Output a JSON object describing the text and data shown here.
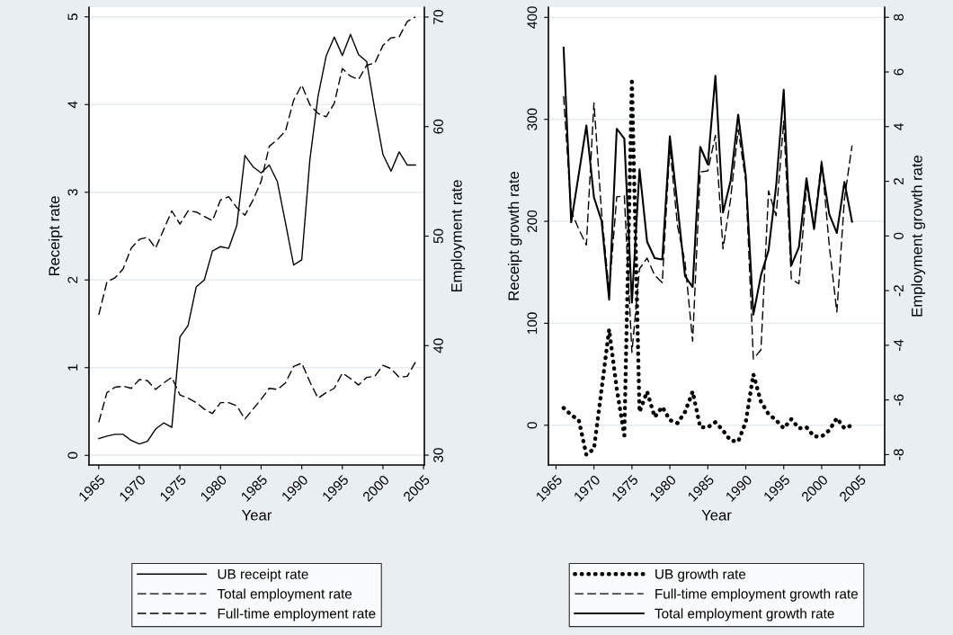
{
  "chart_data": [
    {
      "type": "line",
      "xlabel": "Year",
      "ylabel": "Receipt rate",
      "y2label": "Employment rate",
      "x": [
        1965,
        1966,
        1967,
        1968,
        1969,
        1970,
        1971,
        1972,
        1973,
        1974,
        1975,
        1976,
        1977,
        1978,
        1979,
        1980,
        1981,
        1982,
        1983,
        1984,
        1985,
        1986,
        1987,
        1988,
        1989,
        1990,
        1991,
        1992,
        1993,
        1994,
        1995,
        1996,
        1997,
        1998,
        1999,
        2000,
        2001,
        2002,
        2003,
        2004
      ],
      "xlim": [
        1963.8,
        2005.1
      ],
      "xticks": [
        1965,
        1970,
        1975,
        1980,
        1985,
        1990,
        1995,
        2000,
        2005
      ],
      "ylim": [
        -0.11,
        5.11
      ],
      "yticks": [
        0,
        1,
        2,
        3,
        4,
        5
      ],
      "y2lim": [
        29.1,
        70.9
      ],
      "y2ticks": [
        30,
        40,
        50,
        60,
        70
      ],
      "grid": "y",
      "legend": "bottom",
      "series": [
        {
          "name": "UB receipt rate",
          "color": "#000000",
          "line_style": "solid",
          "values": [
            0.19,
            0.22,
            0.24,
            0.24,
            0.17,
            0.13,
            0.16,
            0.3,
            0.37,
            0.32,
            1.35,
            1.48,
            1.92,
            2.0,
            2.33,
            2.38,
            2.36,
            2.62,
            3.42,
            3.29,
            3.22,
            3.31,
            3.12,
            2.65,
            2.17,
            2.23,
            3.37,
            4.09,
            4.55,
            4.77,
            4.56,
            4.8,
            4.57,
            4.49,
            3.94,
            3.43,
            3.24,
            3.46,
            3.31,
            3.31
          ]
        },
        {
          "name": "Total employment rate",
          "color": "#000000",
          "line_style": "dashed",
          "axis": "y2",
          "values": [
            42.8,
            45.8,
            46.2,
            47.0,
            48.9,
            49.7,
            49.9,
            48.9,
            50.6,
            52.3,
            51.1,
            52.3,
            52.2,
            51.8,
            51.4,
            53.3,
            53.6,
            52.6,
            51.9,
            53.3,
            55.0,
            58.2,
            58.8,
            59.6,
            62.4,
            63.8,
            62.0,
            61.2,
            60.9,
            62.1,
            65.3,
            64.6,
            64.3,
            65.6,
            65.8,
            67.4,
            68.1,
            68.2,
            69.6,
            70.0
          ]
        },
        {
          "name": "Full-time employment rate",
          "color": "#000000",
          "line_style": "dashed",
          "axis": "y2",
          "values": [
            33.0,
            35.7,
            36.2,
            36.3,
            36.1,
            36.9,
            36.8,
            36.0,
            36.6,
            37.1,
            35.5,
            35.2,
            34.8,
            34.2,
            33.8,
            34.8,
            34.8,
            34.5,
            33.3,
            34.2,
            35.1,
            36.1,
            36.0,
            36.6,
            38.1,
            38.4,
            36.7,
            35.2,
            35.7,
            36.1,
            37.5,
            37.0,
            36.4,
            37.1,
            37.2,
            38.2,
            37.9,
            37.1,
            37.2,
            38.5
          ]
        }
      ]
    },
    {
      "type": "line",
      "xlabel": "Year",
      "ylabel": "Receipt growth rate",
      "y2label": "Employment growth rate",
      "x": [
        1966,
        1967,
        1968,
        1969,
        1970,
        1971,
        1972,
        1973,
        1974,
        1975,
        1976,
        1977,
        1978,
        1979,
        1980,
        1981,
        1982,
        1983,
        1984,
        1985,
        1986,
        1987,
        1988,
        1989,
        1990,
        1991,
        1992,
        1993,
        1994,
        1995,
        1996,
        1997,
        1998,
        1999,
        2000,
        2001,
        2002,
        2003,
        2004
      ],
      "xlim": [
        1964.0,
        2008.3
      ],
      "xticks": [
        1965,
        1970,
        1975,
        1980,
        1985,
        1990,
        1995,
        2000,
        2005
      ],
      "ylim": [
        -39,
        410
      ],
      "yticks": [
        0,
        100,
        200,
        300,
        400
      ],
      "y2lim": [
        -8.38,
        8.37
      ],
      "y2ticks": [
        -8,
        -6,
        -4,
        -2,
        0,
        2,
        4,
        6,
        8
      ],
      "grid": "y",
      "legend": "bottom",
      "series": [
        {
          "name": "UB growth rate",
          "color": "#000000",
          "line_style": "dotted",
          "values": [
            17,
            10,
            5,
            -29,
            -23,
            35,
            94,
            36,
            -10,
            340,
            13,
            33,
            8,
            18,
            5,
            2,
            13,
            33,
            -2,
            -2,
            3,
            -5,
            -15,
            -16,
            3,
            50,
            23,
            11,
            5,
            -3,
            6,
            -3,
            -2,
            -11,
            -11,
            -5,
            7,
            -3,
            0
          ]
        },
        {
          "name": "Full-time employment growth rate",
          "color": "#000000",
          "line_style": "dashed",
          "axis": "y2",
          "values": [
            5.11,
            0.9,
            0.25,
            -0.33,
            4.87,
            0.86,
            -2.05,
            1.43,
            1.47,
            -4.26,
            -1.2,
            -0.81,
            -1.44,
            -1.71,
            3.29,
            0.38,
            -0.96,
            -3.85,
            2.34,
            2.38,
            3.68,
            -0.47,
            1.35,
            3.9,
            2.01,
            -4.5,
            -4.17,
            1.65,
            0.74,
            4.2,
            -1.57,
            -1.75,
            1.83,
            0.38,
            2.8,
            -0.35,
            -2.78,
            1.35,
            3.31
          ]
        },
        {
          "name": "Total employment growth rate",
          "color": "#000000",
          "line_style": "solid",
          "axis": "y2",
          "values": [
            6.89,
            0.5,
            2.26,
            4.04,
            1.41,
            0.56,
            -2.33,
            3.92,
            3.56,
            -2.44,
            2.44,
            -0.21,
            -0.81,
            -0.86,
            3.65,
            1.13,
            -1.47,
            -1.87,
            3.26,
            2.62,
            5.86,
            0.86,
            2.01,
            4.44,
            2.2,
            -2.88,
            -1.44,
            -0.53,
            1.83,
            5.35,
            -1.08,
            -0.41,
            2.11,
            0.25,
            2.6,
            0.8,
            0.11,
            1.98,
            0.52
          ]
        }
      ]
    }
  ]
}
